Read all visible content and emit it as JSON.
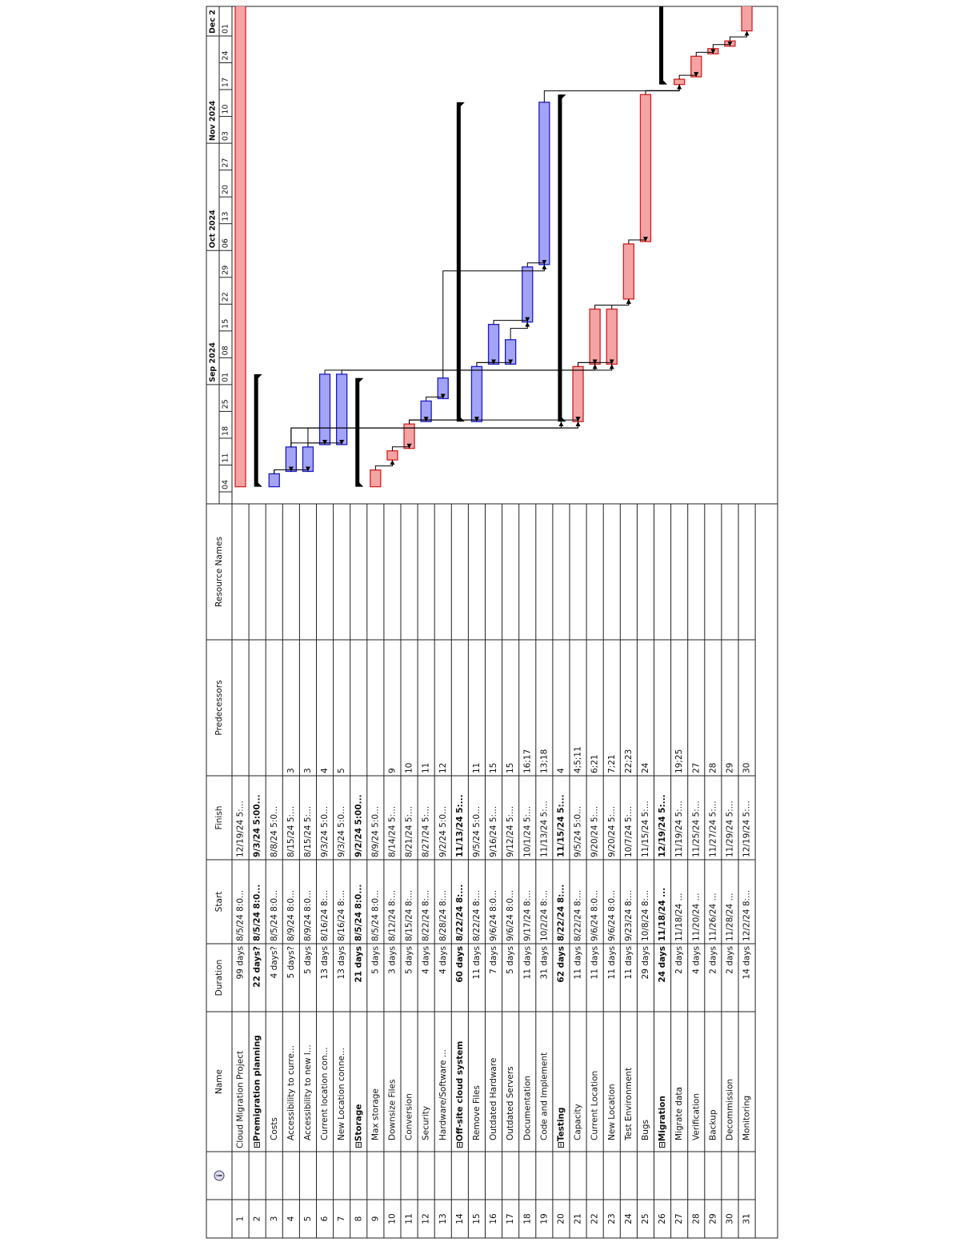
{
  "table": {
    "columns": [
      "Name",
      "Duration",
      "Start",
      "Finish",
      "Predecessors",
      "Resource Names"
    ],
    "rows": [
      {
        "id": 1,
        "name": "Cloud Migration Project",
        "duration": "99 days",
        "start": "8/5/24 8:0...",
        "finish": "12/19/24 5:...",
        "summary": false,
        "critical": true
      },
      {
        "id": 2,
        "name": "⊟Premigration planning",
        "duration": "22 days?",
        "start": "8/5/24 8:0...",
        "finish": "9/3/24 5:00...",
        "summary": true,
        "critical": false
      },
      {
        "id": 3,
        "name": "Costs",
        "duration": "4 days?",
        "start": "8/5/24 8:0...",
        "finish": "8/8/24 5:0...",
        "summary": false,
        "critical": false
      },
      {
        "id": 4,
        "name": "Accessibility to curre...",
        "duration": "5 days?",
        "start": "8/9/24 8:0...",
        "finish": "8/15/24 5:...",
        "predecessors": "3",
        "summary": false,
        "critical": false
      },
      {
        "id": 5,
        "name": "Accessibility to new l...",
        "duration": "5 days",
        "start": "8/9/24 8:0...",
        "finish": "8/15/24 5:...",
        "predecessors": "3",
        "summary": false,
        "critical": false
      },
      {
        "id": 6,
        "name": "Current location con...",
        "duration": "13 days",
        "start": "8/16/24 8:...",
        "finish": "9/3/24 5:0...",
        "predecessors": "4",
        "summary": false,
        "critical": false
      },
      {
        "id": 7,
        "name": "New Location conne...",
        "duration": "13 days",
        "start": "8/16/24 8:...",
        "finish": "9/3/24 5:0...",
        "predecessors": "5",
        "summary": false,
        "critical": false
      },
      {
        "id": 8,
        "name": "⊟Storage",
        "duration": "21 days",
        "start": "8/5/24 8:0...",
        "finish": "9/2/24 5:00...",
        "summary": true,
        "critical": false
      },
      {
        "id": 9,
        "name": "Max storage",
        "duration": "5 days",
        "start": "8/5/24 8:0...",
        "finish": "8/9/24 5:0...",
        "summary": false,
        "critical": true
      },
      {
        "id": 10,
        "name": "Downsize Files",
        "duration": "3 days",
        "start": "8/12/24 8:...",
        "finish": "8/14/24 5:...",
        "predecessors": "9",
        "summary": false,
        "critical": true
      },
      {
        "id": 11,
        "name": "Conversion",
        "duration": "5 days",
        "start": "8/15/24 8:...",
        "finish": "8/21/24 5:...",
        "predecessors": "10",
        "summary": false,
        "critical": true
      },
      {
        "id": 12,
        "name": "Security",
        "duration": "4 days",
        "start": "8/22/24 8:...",
        "finish": "8/27/24 5:...",
        "predecessors": "11",
        "summary": false,
        "critical": false
      },
      {
        "id": 13,
        "name": "Hardware/Software ...",
        "duration": "4 days",
        "start": "8/28/24 8:...",
        "finish": "9/2/24 5:0...",
        "predecessors": "12",
        "summary": false,
        "critical": false
      },
      {
        "id": 14,
        "name": "⊟Off-site cloud system",
        "duration": "60 days",
        "start": "8/22/24 8:...",
        "finish": "11/13/24 5:...",
        "summary": true,
        "critical": false
      },
      {
        "id": 15,
        "name": "Remove Files",
        "duration": "11 days",
        "start": "8/22/24 8:...",
        "finish": "9/5/24 5:0...",
        "predecessors": "11",
        "summary": false,
        "critical": false
      },
      {
        "id": 16,
        "name": "Outdated Hardware",
        "duration": "7 days",
        "start": "9/6/24 8:0...",
        "finish": "9/16/24 5:...",
        "predecessors": "15",
        "summary": false,
        "critical": false
      },
      {
        "id": 17,
        "name": "Outdated Servers",
        "duration": "5 days",
        "start": "9/6/24 8:0...",
        "finish": "9/12/24 5:...",
        "predecessors": "15",
        "summary": false,
        "critical": false
      },
      {
        "id": 18,
        "name": "Documentation",
        "duration": "11 days",
        "start": "9/17/24 8:...",
        "finish": "10/1/24 5:...",
        "predecessors": "16;17",
        "summary": false,
        "critical": false
      },
      {
        "id": 19,
        "name": "Code and Implement",
        "duration": "31 days",
        "start": "10/2/24 8:...",
        "finish": "11/13/24 5:...",
        "predecessors": "13;18",
        "summary": false,
        "critical": false
      },
      {
        "id": 20,
        "name": "⊟Testing",
        "duration": "62 days",
        "start": "8/22/24 8:...",
        "finish": "11/15/24 5:...",
        "predecessors": "4",
        "summary": true,
        "critical": false
      },
      {
        "id": 21,
        "name": "Capacity",
        "duration": "11 days",
        "start": "8/22/24 8:...",
        "finish": "9/5/24 5:0...",
        "predecessors": "4;5;11",
        "summary": false,
        "critical": true
      },
      {
        "id": 22,
        "name": "Current Location",
        "duration": "11 days",
        "start": "9/6/24 8:0...",
        "finish": "9/20/24 5:...",
        "predecessors": "6;21",
        "summary": false,
        "critical": true
      },
      {
        "id": 23,
        "name": "New Location",
        "duration": "11 days",
        "start": "9/6/24 8:0...",
        "finish": "9/20/24 5:...",
        "predecessors": "7;21",
        "summary": false,
        "critical": true
      },
      {
        "id": 24,
        "name": "Test Environment",
        "duration": "11 days",
        "start": "9/23/24 8:...",
        "finish": "10/7/24 5:...",
        "predecessors": "22;23",
        "summary": false,
        "critical": true
      },
      {
        "id": 25,
        "name": "Bugs",
        "duration": "29 days",
        "start": "10/8/24 8:...",
        "finish": "11/15/24 5:...",
        "predecessors": "24",
        "summary": false,
        "critical": true
      },
      {
        "id": 26,
        "name": "⊟Migration",
        "duration": "24 days",
        "start": "11/18/24 ...",
        "finish": "12/19/24 5:...",
        "summary": true,
        "critical": false
      },
      {
        "id": 27,
        "name": "Migrate data",
        "duration": "2 days",
        "start": "11/18/24 ...",
        "finish": "11/19/24 5:...",
        "predecessors": "19;25",
        "summary": false,
        "critical": true
      },
      {
        "id": 28,
        "name": "Verification",
        "duration": "4 days",
        "start": "11/20/24 ...",
        "finish": "11/25/24 5:...",
        "predecessors": "27",
        "summary": false,
        "critical": true
      },
      {
        "id": 29,
        "name": "Backup",
        "duration": "2 days",
        "start": "11/26/24 ...",
        "finish": "11/27/24 5:...",
        "predecessors": "28",
        "summary": false,
        "critical": true
      },
      {
        "id": 30,
        "name": "Decommission",
        "duration": "2 days",
        "start": "11/28/24 ...",
        "finish": "11/29/24 5:...",
        "predecessors": "29",
        "summary": false,
        "critical": true
      },
      {
        "id": 31,
        "name": "Monitoring",
        "duration": "14 days",
        "start": "12/2/24 8:...",
        "finish": "12/19/24 5:...",
        "predecessors": "30",
        "summary": false,
        "critical": true
      }
    ]
  },
  "timescale": {
    "months": [
      "Sep 2024",
      "Oct 2024",
      "Nov 2024",
      "Dec 2"
    ],
    "weeks": [
      "04",
      "11",
      "18",
      "25",
      "01",
      "08",
      "15",
      "22",
      "29",
      "06",
      "13",
      "20",
      "27",
      "03",
      "10",
      "17",
      "24",
      "01"
    ]
  },
  "colors": {
    "critical": "#f4a4a4",
    "critical_border": "#d42020",
    "normal": "#a4a4f6",
    "normal_border": "#1c1cc8",
    "summary": "#000000"
  }
}
